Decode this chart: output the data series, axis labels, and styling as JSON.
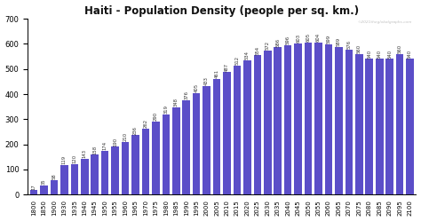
{
  "title": "Haiti - Population Density (people per sq. km.)",
  "bar_color": "#5B4EC8",
  "background_color": "#ffffff",
  "years": [
    1800,
    1850,
    1900,
    1930,
    1935,
    1940,
    1945,
    1950,
    1955,
    1960,
    1965,
    1970,
    1975,
    1980,
    1985,
    1990,
    1995,
    2000,
    2005,
    2010,
    2015,
    2020,
    2025,
    2030,
    2035,
    2040,
    2045,
    2050,
    2055,
    2060,
    2065,
    2070,
    2075,
    2080,
    2085,
    2090,
    2095,
    2100
  ],
  "values": [
    17,
    35,
    58,
    119,
    120,
    143,
    158,
    174,
    190,
    210,
    236,
    262,
    290,
    319,
    348,
    376,
    405,
    433,
    461,
    487,
    512,
    534,
    554,
    572,
    586,
    596,
    603,
    605,
    604,
    599,
    589,
    576,
    560,
    540,
    540,
    540,
    560,
    540
  ],
  "ylim": [
    0,
    700
  ],
  "yticks": [
    0,
    100,
    200,
    300,
    400,
    500,
    600,
    700
  ],
  "watermark": "©2021theglobalgraphs.com",
  "label_fontsize": 3.8,
  "title_fontsize": 8.5,
  "tick_fontsize": 5.0
}
